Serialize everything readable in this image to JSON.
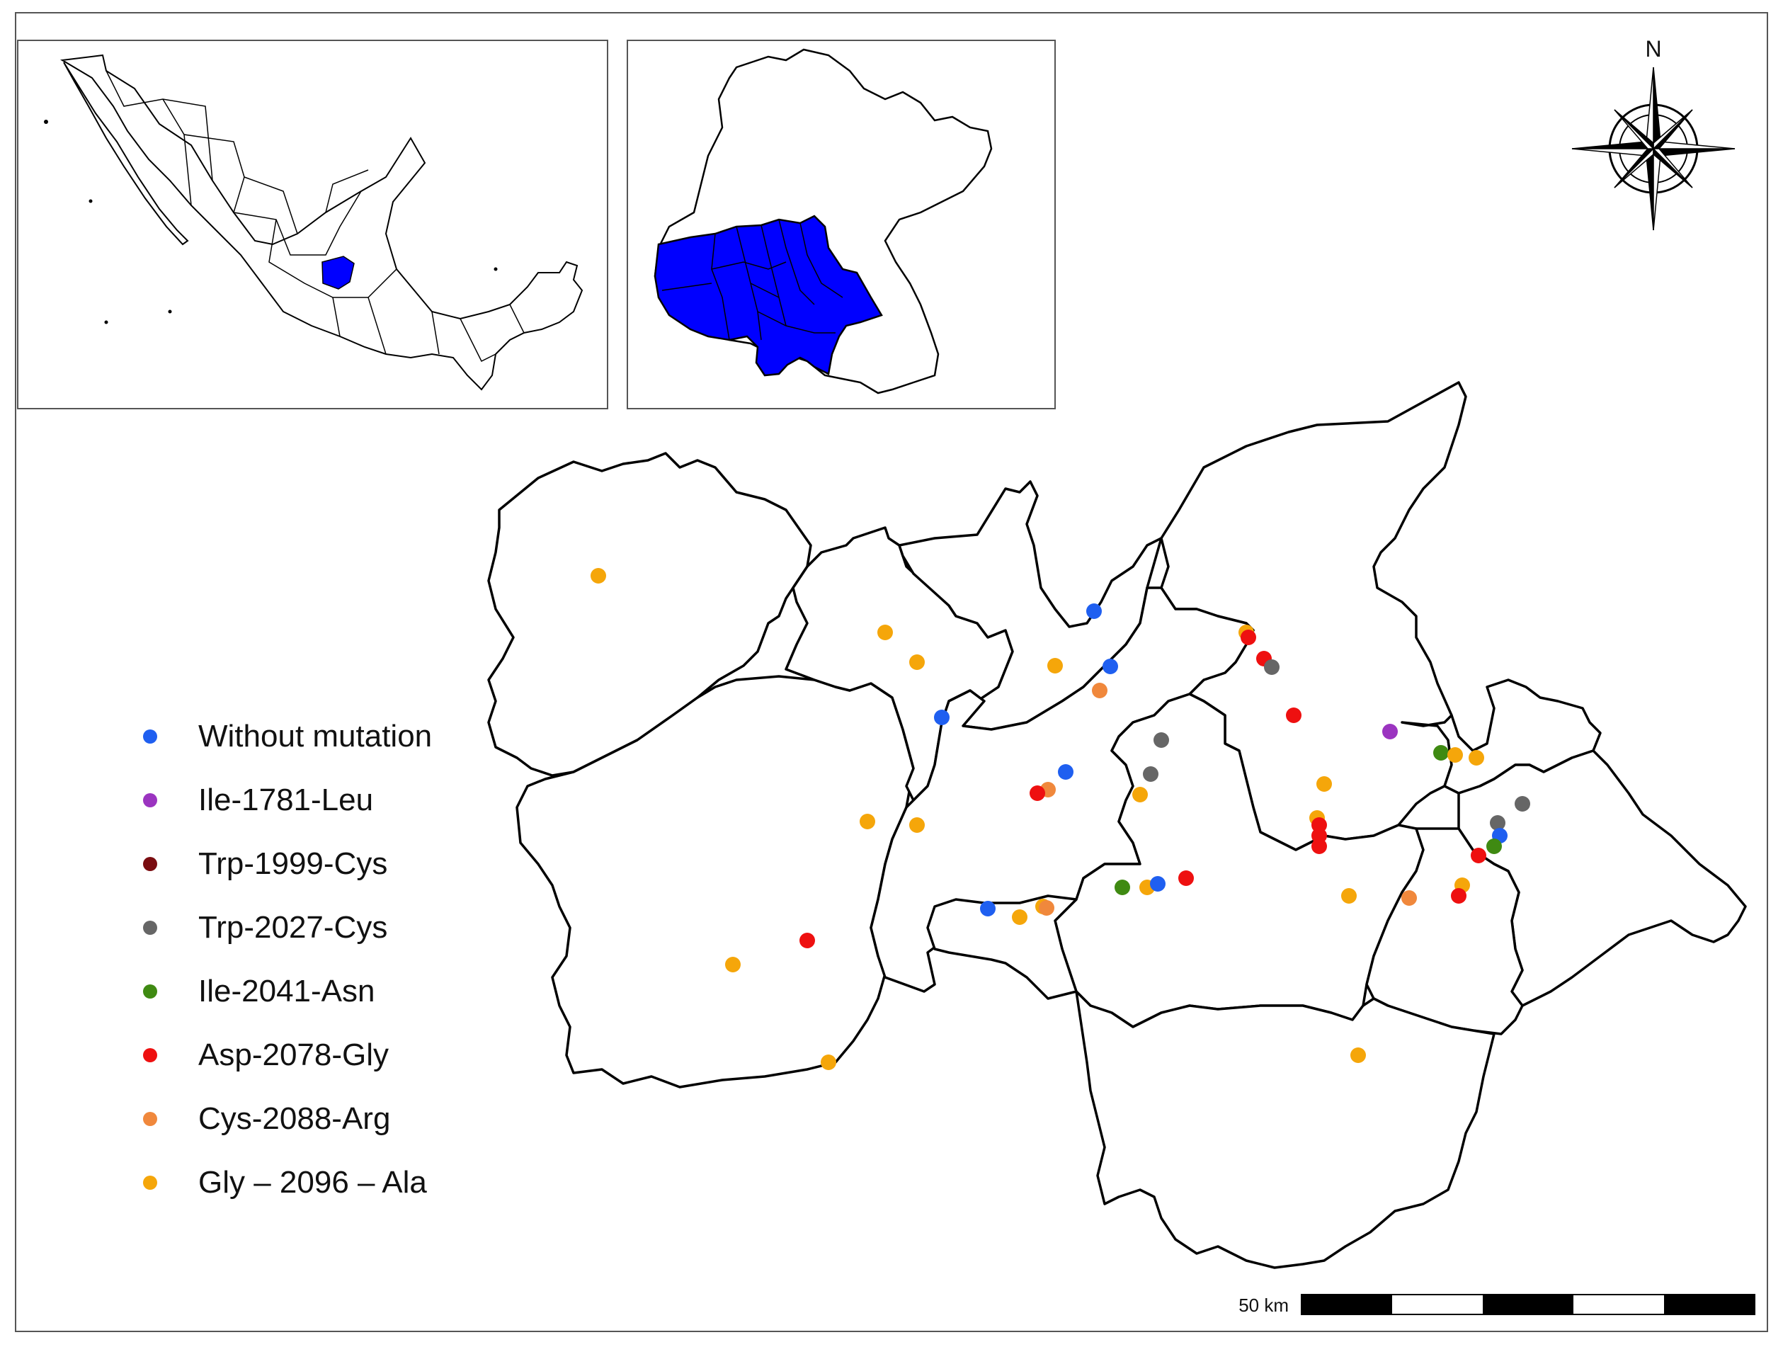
{
  "compass": {
    "letter": "N"
  },
  "scale_bar": {
    "label": "50 km"
  },
  "legend": {
    "items": [
      {
        "id": "without",
        "label": "Without mutation",
        "color": "#1f5ff0"
      },
      {
        "id": "ile1781",
        "label": "Ile-1781-Leu",
        "color": "#9b34c0"
      },
      {
        "id": "trp1999",
        "label": "Trp-1999-Cys",
        "color": "#7a0c10"
      },
      {
        "id": "trp2027",
        "label": "Trp-2027-Cys",
        "color": "#666666"
      },
      {
        "id": "ile2041",
        "label": "Ile-2041-Asn",
        "color": "#3f8a12"
      },
      {
        "id": "asp2078",
        "label": "Asp-2078-Gly",
        "color": "#ee1010"
      },
      {
        "id": "cys2088",
        "label": "Cys-2088-Arg",
        "color": "#f0883c"
      },
      {
        "id": "gly2096",
        "label": "Gly – 2096 – Ala",
        "color": "#f5a60a"
      }
    ]
  },
  "inset_mexico": {
    "highlight_color": "#0000ff",
    "highlighted_region": "Guanajuato"
  },
  "inset_state": {
    "highlight_color": "#0000ff"
  }
}
